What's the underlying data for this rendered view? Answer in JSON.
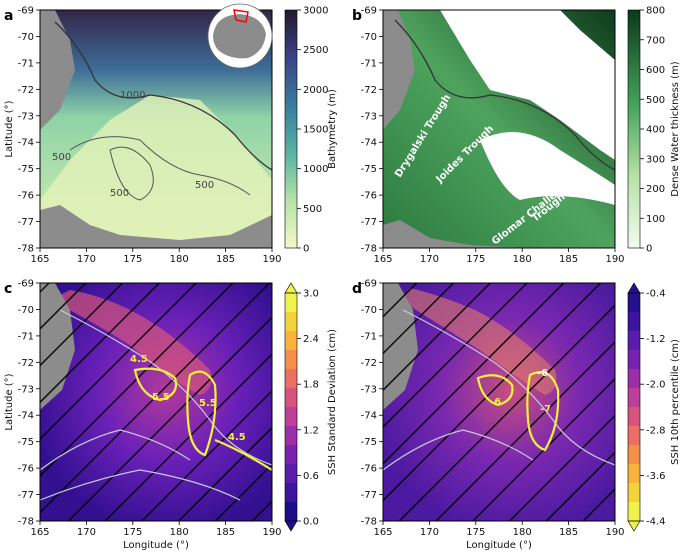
{
  "panels": [
    {
      "label": "a",
      "ylabel": "Latitude (°)",
      "xlabel": "",
      "colorbar": {
        "label": "Bathymetry (m)",
        "ticks": [
          "0",
          "500",
          "1000",
          "1500",
          "2000",
          "2500",
          "3000"
        ]
      },
      "contour_labels": [
        "1000",
        "500",
        "500",
        "500"
      ]
    },
    {
      "label": "b",
      "ylabel": "",
      "xlabel": "",
      "colorbar": {
        "label": "Dense Water thickness (m)",
        "ticks": [
          "0",
          "100",
          "200",
          "300",
          "400",
          "500",
          "600",
          "700",
          "800"
        ]
      },
      "features": [
        "Drygalski Trough",
        "Joides Trough",
        "Glomar Challenger",
        "Trough"
      ]
    },
    {
      "label": "c",
      "ylabel": "Latitude (°)",
      "xlabel": "Longitude (°)",
      "colorbar": {
        "label": "SSH Standard Deviation (cm)",
        "ticks": [
          "0.0",
          "0.6",
          "1.2",
          "1.8",
          "2.4",
          "3.0"
        ]
      },
      "contour_labels": [
        "4.5",
        "5.5",
        "5.5",
        "4.5"
      ]
    },
    {
      "label": "d",
      "ylabel": "",
      "xlabel": "Longitude (°)",
      "colorbar": {
        "label": "SSH 10th percentile (cm)",
        "ticks": [
          "-0.4",
          "-1.2",
          "-2.0",
          "-2.8",
          "-3.6",
          "-4.4"
        ]
      },
      "contour_labels": [
        "-6",
        "-6",
        "-7"
      ]
    }
  ],
  "axes": {
    "lat_ticks": [
      "-69",
      "-70",
      "-71",
      "-72",
      "-73",
      "-74",
      "-75",
      "-76",
      "-77",
      "-78"
    ],
    "lon_ticks": [
      "165",
      "170",
      "175",
      "180",
      "185",
      "190"
    ]
  },
  "colors": {
    "land": "#8c8c8c",
    "bathy_shallow": "#e6f3b6",
    "bathy_deep": "#2b1d3a",
    "dense_high": "#0e3b1c",
    "ssh_low": "#2c0e8f",
    "ssh_high": "#f5e34a",
    "contour_yellow": "#f2f23a"
  }
}
